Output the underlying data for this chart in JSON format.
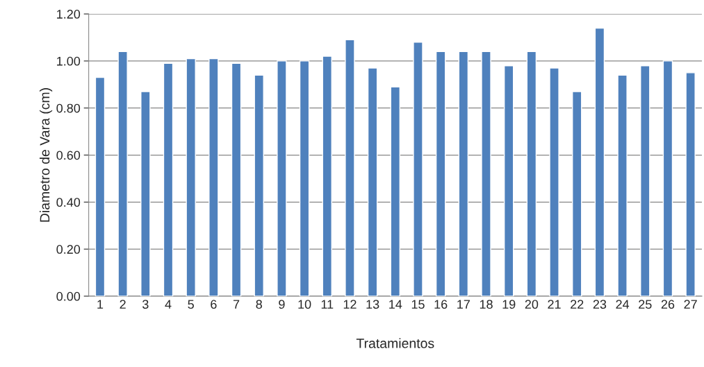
{
  "chart_data": {
    "type": "bar",
    "xlabel": "Tratamientos",
    "ylabel": "Diametro de Vara (cm)",
    "categories": [
      "1",
      "2",
      "3",
      "4",
      "5",
      "6",
      "7",
      "8",
      "9",
      "10",
      "11",
      "12",
      "13",
      "14",
      "15",
      "16",
      "17",
      "18",
      "19",
      "20",
      "21",
      "22",
      "23",
      "24",
      "25",
      "26",
      "27"
    ],
    "values": [
      0.93,
      1.04,
      0.87,
      0.99,
      1.01,
      1.01,
      0.99,
      0.94,
      1.0,
      1.0,
      1.02,
      1.09,
      0.97,
      0.89,
      1.08,
      1.04,
      1.04,
      1.04,
      0.98,
      1.04,
      0.97,
      0.87,
      1.14,
      0.94,
      0.98,
      1.0,
      0.95
    ],
    "color": "#4f81bd",
    "ylim": [
      0,
      1.2
    ],
    "yticks": [
      {
        "value": 0,
        "label": "0.00"
      },
      {
        "value": 0.2,
        "label": "0.20"
      },
      {
        "value": 0.4,
        "label": "0.40"
      },
      {
        "value": 0.6,
        "label": "0.60"
      },
      {
        "value": 0.8,
        "label": "0.80"
      },
      {
        "value": 1.0,
        "label": "1.00"
      },
      {
        "value": 1.2,
        "label": "1.20"
      }
    ],
    "grid": "y",
    "legend": false
  }
}
